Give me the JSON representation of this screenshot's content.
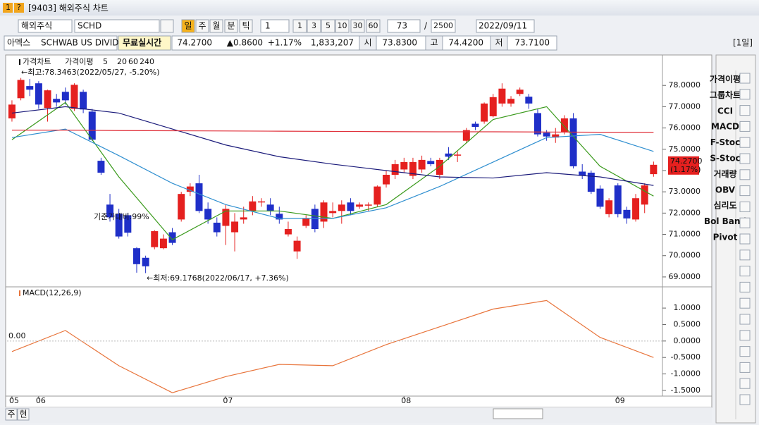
{
  "ui": {
    "title": "[9403] 해외주식 차트",
    "icons": [
      "1",
      "?"
    ],
    "market": "해외주식",
    "symbol": "SCHD",
    "periods": [
      "일",
      "주",
      "월",
      "분",
      "틱"
    ],
    "interval": "1",
    "minutes": [
      "1",
      "3",
      "5",
      "10",
      "30",
      "60"
    ],
    "count": "73",
    "slash": "/",
    "total": "2500",
    "date": "2022/09/11",
    "exchange": "아멕스",
    "name": "SCHWAB US DIVIDE",
    "realtime": "무료실시간",
    "price": "74.2700",
    "change": "▲0.8600",
    "pct": "+1.17%",
    "volume": "1,833,207",
    "open_lbl": "시",
    "open": "73.8300",
    "high_lbl": "고",
    "high": "74.4200",
    "low_lbl": "저",
    "low": "73.7100",
    "period_tag": "[1일]",
    "indicators": [
      "가격이평",
      "그룹차트",
      "CCI",
      "MACD",
      "F-Stoc",
      "S-Stoc",
      "거래량",
      "OBV",
      "심리도",
      "Bol Band",
      "Pivot"
    ],
    "bottom": [
      "주",
      "현"
    ]
  },
  "chart_data": [
    {
      "type": "candlestick",
      "title": "가격차트",
      "ma_title": "가격이평",
      "up_color": "#e5201f",
      "down_color": "#1f2fc8",
      "open": [
        76.45,
        77.4,
        77.97,
        78.1,
        76.94,
        77.37,
        77.7,
        76.9,
        77.7,
        76.77,
        74.46,
        72.4,
        71.97,
        71.9,
        70.35,
        69.9,
        70.4,
        70.35,
        71.1,
        71.7,
        73.0,
        73.4,
        72.2,
        71.55,
        71.4,
        71.1,
        71.7,
        72.1,
        72.5,
        72.4,
        71.97,
        71.0,
        70.2,
        71.4,
        72.2,
        71.6,
        72.0,
        72.1,
        72.5,
        72.3,
        72.35,
        72.4,
        73.35,
        73.8,
        74.05,
        73.75,
        74.05,
        74.45,
        73.8,
        74.8,
        74.7,
        75.4,
        76.2,
        76.3,
        76.55,
        77.15,
        77.15,
        77.6,
        77.47,
        76.7,
        75.78,
        75.55,
        75.8,
        76.45,
        73.95,
        73.9,
        73.15,
        71.95,
        73.3,
        72.15,
        71.7,
        72.4,
        73.83
      ],
      "high": [
        77.3,
        78.35,
        78.3,
        78.2,
        77.8,
        77.6,
        77.9,
        78.1,
        77.8,
        76.9,
        74.6,
        72.9,
        72.2,
        72.0,
        70.4,
        70.0,
        71.2,
        71.0,
        71.3,
        73.0,
        73.4,
        73.8,
        72.5,
        71.8,
        72.4,
        72.0,
        72.3,
        72.8,
        72.7,
        72.7,
        72.3,
        71.6,
        70.9,
        71.9,
        72.4,
        72.6,
        72.5,
        72.6,
        72.7,
        72.5,
        72.5,
        73.3,
        74.0,
        74.5,
        74.6,
        74.6,
        74.7,
        74.6,
        74.6,
        75.1,
        74.9,
        76.0,
        76.3,
        77.2,
        77.6,
        78.1,
        77.5,
        77.9,
        77.6,
        76.9,
        75.9,
        76.0,
        76.6,
        76.7,
        74.3,
        74.0,
        73.3,
        72.7,
        73.4,
        72.3,
        72.9,
        73.4,
        74.42
      ],
      "low": [
        76.3,
        77.3,
        77.5,
        76.9,
        76.3,
        77.0,
        77.1,
        76.8,
        76.7,
        75.4,
        73.8,
        71.6,
        70.8,
        70.9,
        69.2,
        69.18,
        70.3,
        70.3,
        70.5,
        71.6,
        72.8,
        72.0,
        71.5,
        70.9,
        70.5,
        70.2,
        71.5,
        71.9,
        72.3,
        71.9,
        71.5,
        70.9,
        69.85,
        71.3,
        71.1,
        71.3,
        71.8,
        71.5,
        71.9,
        72.2,
        72.1,
        72.3,
        73.2,
        73.6,
        73.9,
        73.6,
        73.9,
        74.2,
        73.6,
        74.5,
        74.4,
        75.3,
        75.9,
        76.2,
        76.5,
        77.0,
        77.0,
        77.5,
        76.9,
        75.6,
        75.4,
        75.3,
        75.7,
        74.1,
        73.6,
        72.9,
        72.2,
        71.8,
        71.8,
        71.5,
        71.6,
        72.0,
        73.71
      ],
      "close": [
        77.1,
        78.26,
        77.8,
        77.1,
        77.77,
        77.2,
        77.3,
        78.03,
        76.87,
        75.45,
        73.9,
        71.8,
        70.9,
        71.08,
        69.6,
        69.5,
        71.15,
        70.8,
        70.6,
        72.9,
        73.25,
        72.1,
        71.7,
        71.1,
        72.2,
        71.6,
        71.8,
        72.55,
        72.55,
        72.1,
        71.7,
        71.25,
        70.7,
        71.75,
        71.25,
        72.5,
        72.1,
        72.4,
        72.1,
        72.4,
        72.4,
        73.25,
        73.8,
        74.3,
        74.4,
        74.4,
        74.5,
        74.3,
        74.5,
        74.65,
        74.75,
        75.9,
        76.05,
        77.15,
        77.45,
        77.85,
        77.37,
        77.8,
        77.15,
        75.7,
        75.6,
        75.7,
        76.45,
        74.2,
        73.75,
        73.0,
        72.3,
        72.6,
        71.95,
        71.75,
        72.7,
        73.3,
        74.27
      ],
      "series": [
        {
          "name": "5",
          "color": "#3a9a1c",
          "x": [
            0,
            6,
            12,
            18,
            24,
            30,
            36,
            42,
            48,
            54,
            60,
            66,
            72
          ],
          "values": [
            75.45,
            77.2,
            73.7,
            70.75,
            72.1,
            72.1,
            71.75,
            72.4,
            74.2,
            76.4,
            77.0,
            74.2,
            72.8
          ]
        },
        {
          "name": "20",
          "color": "#2f8fd0",
          "x": [
            0,
            6,
            12,
            18,
            24,
            30,
            36,
            42,
            48,
            54,
            60,
            66,
            72
          ],
          "values": [
            75.55,
            75.95,
            74.7,
            73.4,
            72.4,
            71.75,
            71.75,
            72.25,
            73.25,
            74.4,
            75.55,
            75.7,
            74.9
          ]
        },
        {
          "name": "60",
          "color": "#1a1a7a",
          "x": [
            0,
            6,
            12,
            18,
            24,
            30,
            36,
            42,
            48,
            54,
            60,
            66,
            72
          ],
          "values": [
            76.7,
            77.0,
            76.7,
            75.95,
            75.2,
            74.65,
            74.3,
            74.0,
            73.7,
            73.65,
            73.9,
            73.7,
            73.3
          ]
        },
        {
          "name": "240",
          "color": "#e0303a",
          "x": [
            0,
            6,
            12,
            18,
            24,
            30,
            36,
            42,
            48,
            54,
            60,
            66,
            72
          ],
          "values": [
            75.9,
            75.9,
            75.88,
            75.87,
            75.86,
            75.85,
            75.84,
            75.83,
            75.82,
            75.82,
            75.81,
            75.8,
            75.8
          ]
        }
      ],
      "xlim": [
        -0.55,
        73
      ],
      "xticks": [
        {
          "value": 0,
          "label": "05"
        },
        {
          "value": 3,
          "label": "06"
        },
        {
          "value": 24,
          "label": "07"
        },
        {
          "value": 44,
          "label": "08"
        },
        {
          "value": 68,
          "label": "09"
        }
      ],
      "ylim": [
        68.6,
        79.1
      ],
      "yticks": [
        {
          "value": 78,
          "label": "78.0000"
        },
        {
          "value": 77,
          "label": "77.0000"
        },
        {
          "value": 76,
          "label": "76.0000"
        },
        {
          "value": 75,
          "label": "75.0000"
        },
        {
          "value": 74,
          "label": "74.0000"
        },
        {
          "value": 73,
          "label": "73.0000"
        },
        {
          "value": 72,
          "label": "72.0000"
        },
        {
          "value": 71,
          "label": "71.0000"
        },
        {
          "value": 70,
          "label": "70.0000"
        },
        {
          "value": 69,
          "label": "69.0000"
        }
      ],
      "annotations": [
        "←최고:78.3463(2022/05/27, -5.20%)",
        "←최저:69.1768(2022/06/17, +7.36%)",
        "기준가대비:99%"
      ],
      "last_price": {
        "value": 74.27,
        "label": "74.2700",
        "change_label": "(1.17%)"
      }
    },
    {
      "type": "line",
      "series": [
        {
          "name": "MACD(12,26,9)",
          "color": "#e8743b",
          "x": [
            0,
            6,
            12,
            18,
            24,
            30,
            36,
            42,
            48,
            54,
            60,
            66,
            72
          ],
          "values": [
            -0.32,
            0.32,
            -0.75,
            -1.57,
            -1.08,
            -0.71,
            -0.75,
            -0.11,
            0.43,
            0.97,
            1.23,
            0.11,
            -0.5
          ]
        }
      ],
      "xlim": [
        -0.55,
        73
      ],
      "ylim": [
        -1.63,
        1.58
      ],
      "yticks": [
        {
          "value": 1,
          "label": "1.0000"
        },
        {
          "value": 0.5,
          "label": "0.5000"
        },
        {
          "value": 0,
          "label": "0.0000"
        },
        {
          "value": -0.5,
          "label": "-0.5000"
        },
        {
          "value": -1,
          "label": "-1.0000"
        },
        {
          "value": -1.5,
          "label": "-1.5000"
        }
      ],
      "zero_label": {
        "value": 0,
        "label": "0.00"
      }
    }
  ]
}
